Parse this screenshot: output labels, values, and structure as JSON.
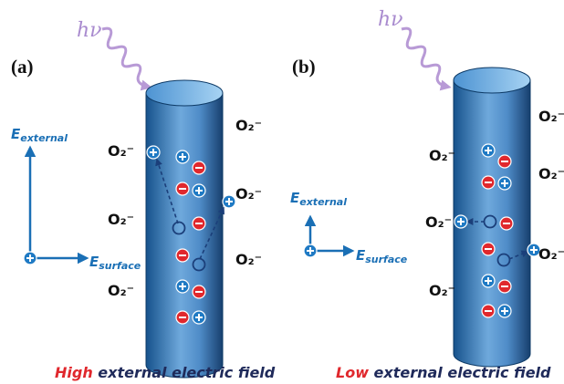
{
  "panels": [
    {
      "label": "(a)",
      "light": "hν",
      "e_external": {
        "symbol": "E",
        "subscript": "external"
      },
      "e_surface": {
        "symbol": "E",
        "subscript": "surface"
      },
      "oxygen_labels": [
        "O₂⁻",
        "O₂⁻",
        "O₂⁻",
        "O₂⁻",
        "O₂⁻",
        "O₂⁻"
      ],
      "caption": {
        "emphasis": "High",
        "rest": " external electric field"
      }
    },
    {
      "label": "(b)",
      "light": "hν",
      "e_external": {
        "symbol": "E",
        "subscript": "external"
      },
      "e_surface": {
        "symbol": "E",
        "subscript": "surface"
      },
      "oxygen_labels": [
        "O₂⁻",
        "O₂⁻",
        "O₂⁻",
        "O₂⁻",
        "O₂⁻",
        "O₂⁻"
      ],
      "caption": {
        "emphasis": "Low",
        "rest": " external electric field"
      }
    }
  ]
}
